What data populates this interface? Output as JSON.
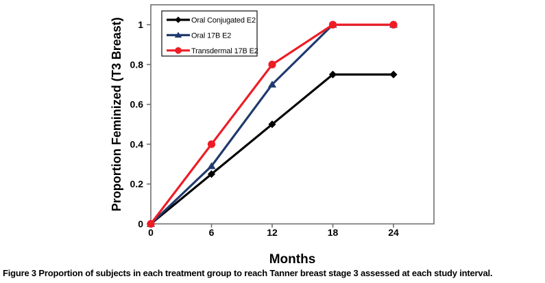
{
  "figure": {
    "caption_label": "Figure 3",
    "caption_text": "Proportion of subjects in each treatment group to reach Tanner breast stage 3 assessed at each study interval."
  },
  "chart_data": {
    "type": "line",
    "title": "",
    "xlabel": "Months",
    "ylabel": "Proportion Feminized (T3 Breast)",
    "x": [
      0,
      6,
      12,
      18,
      24
    ],
    "x_tick_labels": [
      "0",
      "6",
      "12",
      "18",
      "24"
    ],
    "y_ticks": [
      0,
      0.2,
      0.4,
      0.6,
      0.8,
      1
    ],
    "y_tick_labels": [
      "0",
      "0.2",
      "0.4",
      "0.6",
      "0.8",
      "1"
    ],
    "xlim": [
      0,
      28
    ],
    "ylim": [
      0,
      1.1
    ],
    "grid": false,
    "legend_position": "top-left-inside",
    "series": [
      {
        "name": "Oral Conjugated E2",
        "marker": "diamond",
        "color": "#000000",
        "values": [
          0,
          0.25,
          0.5,
          0.75,
          0.75
        ]
      },
      {
        "name": "Oral 17B E2",
        "marker": "triangle",
        "color": "#1f3a6e",
        "values": [
          0,
          0.29,
          0.7,
          1,
          1
        ]
      },
      {
        "name": "Transdermal 17B E2",
        "marker": "circle",
        "color": "#ee1c25",
        "values": [
          0,
          0.4,
          0.8,
          1,
          1
        ]
      }
    ],
    "axis_color": "#6f6f6f",
    "legend_border_color": "#2f2f2f",
    "text_color": "#000000"
  }
}
